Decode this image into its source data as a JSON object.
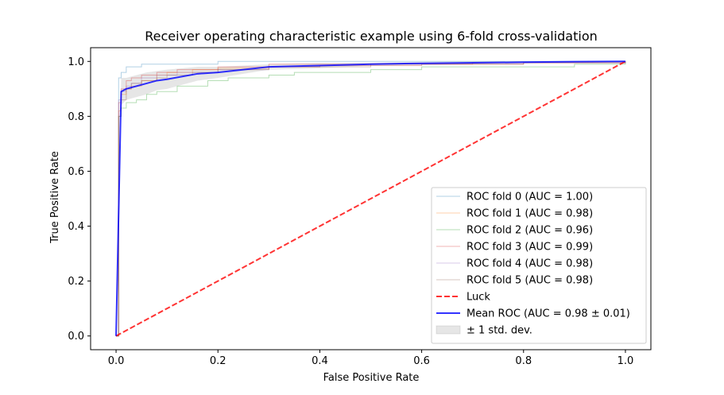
{
  "chart_data": {
    "type": "line",
    "title": "Receiver operating characteristic example using 6-fold cross-validation",
    "xlabel": "False Positive Rate",
    "ylabel": "True Positive Rate",
    "xlim": [
      -0.05,
      1.05
    ],
    "ylim": [
      -0.05,
      1.05
    ],
    "xticks": [
      "0.0",
      "0.2",
      "0.4",
      "0.6",
      "0.8",
      "1.0"
    ],
    "yticks": [
      "0.0",
      "0.2",
      "0.4",
      "0.6",
      "0.8",
      "1.0"
    ],
    "grid": false,
    "legend_position": "lower-right",
    "series": [
      {
        "name": "ROC fold 0 (AUC = 1.00)",
        "color": "#1f77b4",
        "x": [
          0,
          0.005,
          0.01,
          0.02,
          0.03,
          0.05,
          0.1,
          0.15,
          0.2,
          0.3,
          0.5,
          0.7,
          0.9,
          1.0
        ],
        "y": [
          0,
          0.94,
          0.96,
          0.98,
          0.98,
          0.99,
          0.99,
          0.99,
          1.0,
          1.0,
          1.0,
          1.0,
          1.0,
          1.0
        ]
      },
      {
        "name": "ROC fold 1 (AUC = 0.98)",
        "color": "#ff7f0e",
        "x": [
          0,
          0.005,
          0.01,
          0.02,
          0.03,
          0.05,
          0.08,
          0.1,
          0.15,
          0.2,
          0.3,
          0.4,
          0.6,
          0.8,
          1.0
        ],
        "y": [
          0,
          0.82,
          0.88,
          0.9,
          0.91,
          0.93,
          0.95,
          0.96,
          0.97,
          0.975,
          0.98,
          0.985,
          0.99,
          0.995,
          1.0
        ]
      },
      {
        "name": "ROC fold 2 (AUC = 0.96)",
        "color": "#2ca02c",
        "x": [
          0,
          0.005,
          0.01,
          0.02,
          0.04,
          0.06,
          0.08,
          0.12,
          0.18,
          0.22,
          0.3,
          0.35,
          0.5,
          0.6,
          0.8,
          0.9,
          1.0
        ],
        "y": [
          0,
          0.8,
          0.83,
          0.85,
          0.86,
          0.88,
          0.89,
          0.91,
          0.93,
          0.94,
          0.95,
          0.96,
          0.97,
          0.98,
          0.98,
          0.99,
          1.0
        ]
      },
      {
        "name": "ROC fold 3 (AUC = 0.99)",
        "color": "#d62728",
        "x": [
          0,
          0.005,
          0.01,
          0.02,
          0.03,
          0.05,
          0.08,
          0.12,
          0.2,
          0.3,
          0.5,
          0.7,
          1.0
        ],
        "y": [
          0,
          0.85,
          0.9,
          0.93,
          0.94,
          0.95,
          0.96,
          0.97,
          0.98,
          0.99,
          0.99,
          0.995,
          1.0
        ]
      },
      {
        "name": "ROC fold 4 (AUC = 0.98)",
        "color": "#9467bd",
        "x": [
          0,
          0.005,
          0.01,
          0.02,
          0.03,
          0.05,
          0.08,
          0.12,
          0.2,
          0.3,
          0.4,
          0.6,
          0.8,
          1.0
        ],
        "y": [
          0,
          0.86,
          0.89,
          0.91,
          0.92,
          0.94,
          0.95,
          0.96,
          0.97,
          0.98,
          0.985,
          0.99,
          0.995,
          1.0
        ]
      },
      {
        "name": "ROC fold 5 (AUC = 0.98)",
        "color": "#8c564b",
        "x": [
          0,
          0.005,
          0.01,
          0.02,
          0.03,
          0.05,
          0.08,
          0.1,
          0.15,
          0.2,
          0.3,
          0.5,
          0.8,
          1.0
        ],
        "y": [
          0,
          0.8,
          0.86,
          0.9,
          0.92,
          0.93,
          0.94,
          0.95,
          0.96,
          0.97,
          0.98,
          0.99,
          0.995,
          1.0
        ]
      },
      {
        "name": "Luck",
        "color": "#ff0000",
        "x": [
          0,
          1
        ],
        "y": [
          0,
          1
        ]
      },
      {
        "name": "Mean ROC (AUC = 0.98 ± 0.01)",
        "color": "#0000ff",
        "x": [
          0,
          0.01,
          0.02,
          0.04,
          0.06,
          0.08,
          0.1,
          0.13,
          0.16,
          0.2,
          0.25,
          0.3,
          0.4,
          0.5,
          0.6,
          0.7,
          0.8,
          0.9,
          1.0
        ],
        "y": [
          0,
          0.89,
          0.9,
          0.91,
          0.92,
          0.93,
          0.935,
          0.945,
          0.955,
          0.96,
          0.97,
          0.98,
          0.985,
          0.99,
          0.993,
          0.995,
          0.997,
          0.999,
          1.0
        ]
      },
      {
        "name": "± 1 std. dev.",
        "color": "#808080",
        "x": [
          0,
          0.01,
          0.02,
          0.04,
          0.06,
          0.08,
          0.1,
          0.13,
          0.16,
          0.2,
          0.25,
          0.3,
          0.4,
          0.5,
          0.6,
          0.7,
          0.8,
          0.9,
          1.0
        ],
        "y_low": [
          0,
          0.84,
          0.86,
          0.87,
          0.88,
          0.895,
          0.9,
          0.915,
          0.93,
          0.94,
          0.955,
          0.97,
          0.975,
          0.985,
          0.988,
          0.99,
          0.993,
          0.997,
          1.0
        ],
        "y_high": [
          0,
          0.94,
          0.94,
          0.95,
          0.96,
          0.965,
          0.97,
          0.975,
          0.98,
          0.98,
          0.985,
          0.99,
          0.995,
          0.995,
          0.998,
          1.0,
          1.0,
          1.0,
          1.0
        ]
      }
    ]
  }
}
